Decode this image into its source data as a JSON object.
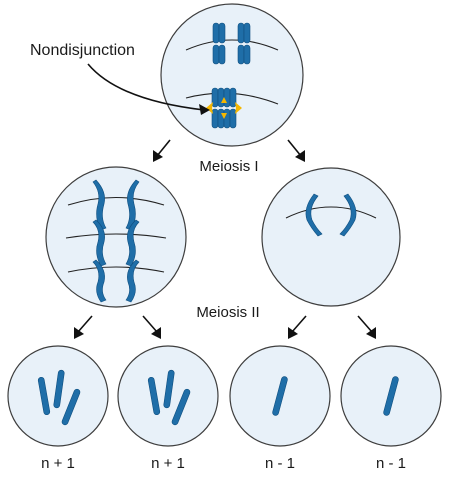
{
  "labels": {
    "nondisjunction": "Nondisjunction",
    "meiosis_one": "Meiosis I",
    "meiosis_two": "Meiosis II"
  },
  "daughter_cells": [
    {
      "label": "n + 1"
    },
    {
      "label": "n + 1"
    },
    {
      "label": "n - 1"
    },
    {
      "label": "n - 1"
    }
  ],
  "colors": {
    "chromosome": "#1f6ea8",
    "cell_fill": "#e8f1f9",
    "nondisjunction_marker": "#f5b700"
  },
  "icons": {
    "nondisjunction_marker": "starburst-icon"
  }
}
